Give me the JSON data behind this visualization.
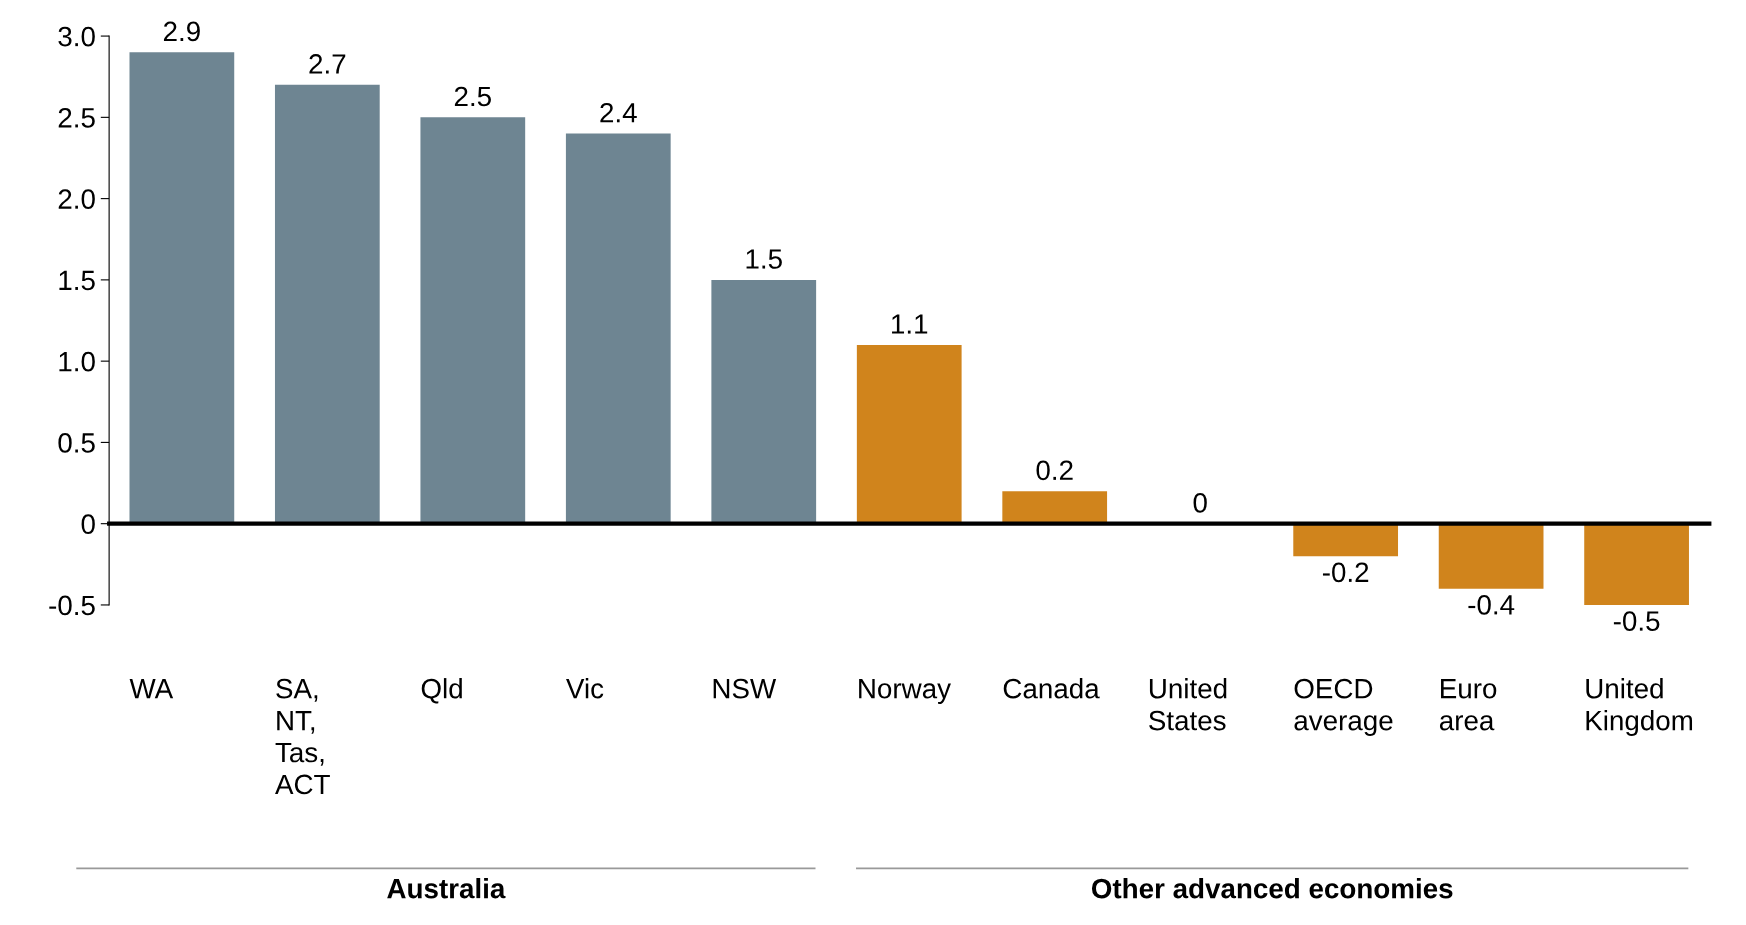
{
  "chart_data": {
    "type": "bar",
    "categories": [
      "WA",
      "SA,\nNT,\nTas,\nACT",
      "Qld",
      "Vic",
      "NSW",
      "Norway",
      "Canada",
      "United\nStates",
      "OECD\naverage",
      "Euro\narea",
      "United\nKingdom"
    ],
    "values": [
      2.9,
      2.7,
      2.5,
      2.4,
      1.5,
      1.1,
      0.2,
      0,
      -0.2,
      -0.4,
      -0.5
    ],
    "colors": [
      "#6e8592",
      "#6e8592",
      "#6e8592",
      "#6e8592",
      "#6e8592",
      "#d0841c",
      "#d0841c",
      "#d0841c",
      "#d0841c",
      "#d0841c",
      "#d0841c"
    ],
    "data_labels": true,
    "ylim": [
      -0.5,
      3.0
    ],
    "yticks": [
      {
        "value": 3.0,
        "label": "3.0"
      },
      2.5,
      {
        "value": 2.0,
        "label": "2.0"
      },
      1.5,
      {
        "value": 1.0,
        "label": "1.0"
      },
      0.5,
      0,
      -0.5
    ],
    "annotations": [
      "Australia",
      "Other advanced economies"
    ],
    "legend": false
  }
}
